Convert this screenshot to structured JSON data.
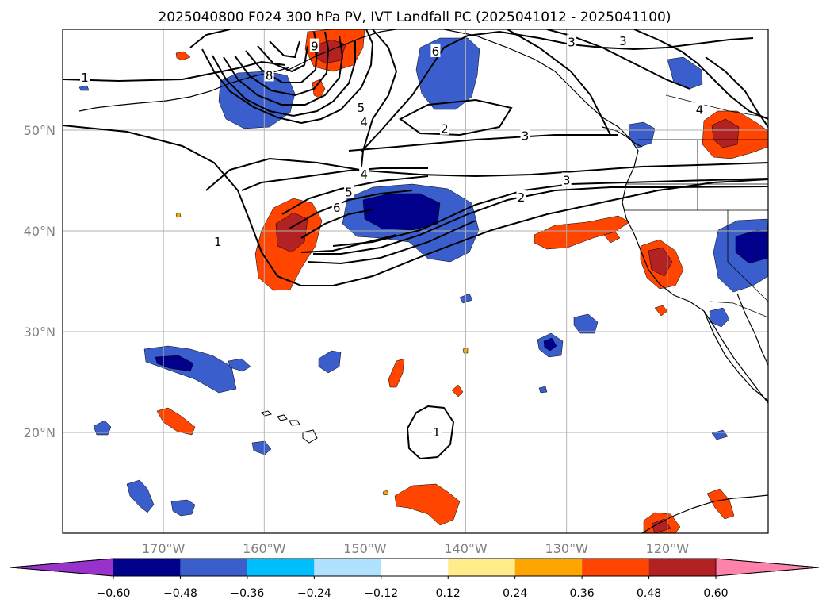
{
  "title": "2025040800 F024 300 hPa PV, IVT Landfall PC (2025041012 - 2025041100)",
  "map": {
    "lon_range": [
      -180,
      -110
    ],
    "lat_range": [
      10,
      60
    ],
    "lon_ticks": [
      {
        "value": -170,
        "label": "170°W"
      },
      {
        "value": -160,
        "label": "160°W"
      },
      {
        "value": -150,
        "label": "150°W"
      },
      {
        "value": -140,
        "label": "140°W"
      },
      {
        "value": -130,
        "label": "130°W"
      },
      {
        "value": -120,
        "label": "120°W"
      }
    ],
    "lat_ticks": [
      {
        "value": 20,
        "label": "20°N"
      },
      {
        "value": 30,
        "label": "30°N"
      },
      {
        "value": 40,
        "label": "40°N"
      },
      {
        "value": 50,
        "label": "50°N"
      }
    ],
    "grid": true
  },
  "colorbar": {
    "orientation": "horizontal",
    "extend": "both",
    "ticks": [
      "−0.60",
      "−0.48",
      "−0.36",
      "−0.24",
      "−0.12",
      "0.12",
      "0.24",
      "0.36",
      "0.48",
      "0.60"
    ],
    "colors": [
      "#9932cc",
      "#00008b",
      "#3a5fcd",
      "#00bfff",
      "#b0e2ff",
      "#ffffff",
      "#ffec8b",
      "#ffa500",
      "#ff4500",
      "#b22222",
      "#ff82ab"
    ]
  },
  "contour_labels": [
    {
      "text": "1",
      "lon": -177.8,
      "lat": 55.2
    },
    {
      "text": "8",
      "lon": -159.5,
      "lat": 55.4
    },
    {
      "text": "9",
      "lon": -155.0,
      "lat": 58.3
    },
    {
      "text": "6",
      "lon": -143.0,
      "lat": 57.8
    },
    {
      "text": "3",
      "lon": -129.5,
      "lat": 58.7
    },
    {
      "text": "3",
      "lon": -124.4,
      "lat": 58.8
    },
    {
      "text": "5",
      "lon": -150.4,
      "lat": 52.2
    },
    {
      "text": "4",
      "lon": -150.1,
      "lat": 50.8
    },
    {
      "text": "2",
      "lon": -142.1,
      "lat": 50.1
    },
    {
      "text": "3",
      "lon": -134.1,
      "lat": 49.4
    },
    {
      "text": "4",
      "lon": -116.8,
      "lat": 52.0
    },
    {
      "text": "4",
      "lon": -150.1,
      "lat": 45.6
    },
    {
      "text": "3",
      "lon": -130.0,
      "lat": 45.0
    },
    {
      "text": "5",
      "lon": -151.6,
      "lat": 43.8
    },
    {
      "text": "2",
      "lon": -134.5,
      "lat": 43.3
    },
    {
      "text": "6",
      "lon": -152.8,
      "lat": 42.3
    },
    {
      "text": "1",
      "lon": -164.6,
      "lat": 38.9
    },
    {
      "text": "1",
      "lon": -142.9,
      "lat": 20.0
    }
  ]
}
